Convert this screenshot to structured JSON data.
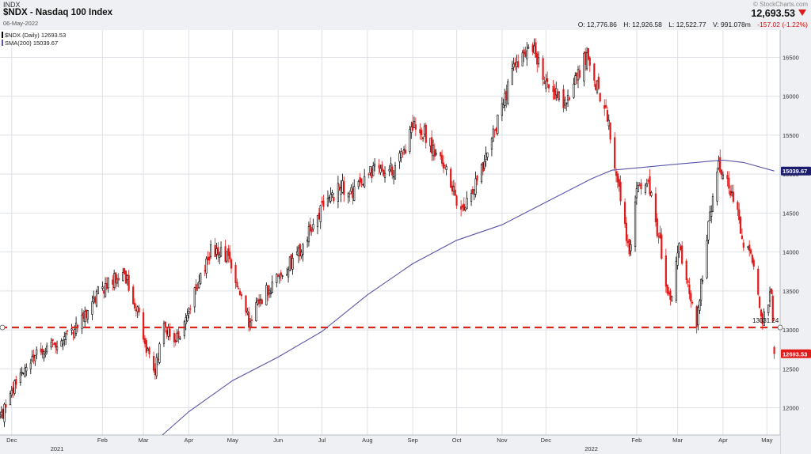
{
  "header": {
    "symbol": "INDX",
    "title": "$NDX - Nasdaq 100 Index",
    "date": "06-May-2022",
    "watermark": "© StockCharts.com",
    "last_price": "12,693.53",
    "open": "O: 12,776.86",
    "high": "H: 12,926.58",
    "low": "L: 12,522.77",
    "volume": "V: 991.078m",
    "change": "-157.02 (-1.22%)"
  },
  "legend": {
    "price": "$NDX (Daily) 12693.53",
    "sma": "SMA(200) 15039.67"
  },
  "colors": {
    "up": "#000000",
    "down": "#e01b1b",
    "sma": "#5a54a8",
    "support": "#d9251c",
    "grid": "#dde1e6",
    "axis_bg": "#eef0f3"
  },
  "chart_data": {
    "type": "candlestick",
    "title": "$NDX - Nasdaq 100 Index",
    "ylim": [
      11650,
      16850
    ],
    "y_ticks": [
      "12000",
      "12500",
      "13000",
      "13500",
      "14000",
      "14500",
      "15000",
      "15500",
      "16000",
      "16500"
    ],
    "x_range": [
      "2020-11-23",
      "2022-05-10"
    ],
    "x_ticks": [
      {
        "date": "2020-12-01",
        "label": "Dec"
      },
      {
        "date": "2021-01-01",
        "label": "2021",
        "year": true
      },
      {
        "date": "2021-02-01",
        "label": "Feb"
      },
      {
        "date": "2021-03-01",
        "label": "Mar"
      },
      {
        "date": "2021-04-01",
        "label": "Apr"
      },
      {
        "date": "2021-05-01",
        "label": "May"
      },
      {
        "date": "2021-06-01",
        "label": "Jun"
      },
      {
        "date": "2021-07-01",
        "label": "Jul"
      },
      {
        "date": "2021-08-01",
        "label": "Aug"
      },
      {
        "date": "2021-09-01",
        "label": "Sep"
      },
      {
        "date": "2021-10-01",
        "label": "Oct"
      },
      {
        "date": "2021-11-01",
        "label": "Nov"
      },
      {
        "date": "2021-12-01",
        "label": "Dec"
      },
      {
        "date": "2022-01-01",
        "label": "2022",
        "year": true
      },
      {
        "date": "2022-02-01",
        "label": "Feb"
      },
      {
        "date": "2022-03-01",
        "label": "Mar"
      },
      {
        "date": "2022-04-01",
        "label": "Apr"
      },
      {
        "date": "2022-05-01",
        "label": "May"
      }
    ],
    "price_series": {
      "name": "$NDX (Daily)",
      "last": 12693.53,
      "path": [
        [
          "2020-11-23",
          11850
        ],
        [
          "2020-12-05",
          12350
        ],
        [
          "2020-12-20",
          12720
        ],
        [
          "2021-01-05",
          12870
        ],
        [
          "2021-01-15",
          13050
        ],
        [
          "2021-01-25",
          13380
        ],
        [
          "2021-02-05",
          13600
        ],
        [
          "2021-02-15",
          13780
        ],
        [
          "2021-02-25",
          13250
        ],
        [
          "2021-03-08",
          12400
        ],
        [
          "2021-03-15",
          13000
        ],
        [
          "2021-03-25",
          12900
        ],
        [
          "2021-04-05",
          13500
        ],
        [
          "2021-04-16",
          14000
        ],
        [
          "2021-04-28",
          13950
        ],
        [
          "2021-05-12",
          13100
        ],
        [
          "2021-05-20",
          13400
        ],
        [
          "2021-06-01",
          13650
        ],
        [
          "2021-06-15",
          14000
        ],
        [
          "2021-06-30",
          14550
        ],
        [
          "2021-07-14",
          14850
        ],
        [
          "2021-07-20",
          14700
        ],
        [
          "2021-08-01",
          15050
        ],
        [
          "2021-08-20",
          15050
        ],
        [
          "2021-09-01",
          15600
        ],
        [
          "2021-09-10",
          15500
        ],
        [
          "2021-09-22",
          15100
        ],
        [
          "2021-10-04",
          14500
        ],
        [
          "2021-10-15",
          14900
        ],
        [
          "2021-10-28",
          15600
        ],
        [
          "2021-11-08",
          16300
        ],
        [
          "2021-11-22",
          16600
        ],
        [
          "2021-11-30",
          16200
        ],
        [
          "2021-12-15",
          15900
        ],
        [
          "2021-12-28",
          16500
        ],
        [
          "2022-01-05",
          16100
        ],
        [
          "2022-01-12",
          15700
        ],
        [
          "2022-01-20",
          14800
        ],
        [
          "2022-01-27",
          13900
        ],
        [
          "2022-02-02",
          14950
        ],
        [
          "2022-02-10",
          14800
        ],
        [
          "2022-02-17",
          14100
        ],
        [
          "2022-02-24",
          13300
        ],
        [
          "2022-03-02",
          14100
        ],
        [
          "2022-03-14",
          13100
        ],
        [
          "2022-03-23",
          14500
        ],
        [
          "2022-03-29",
          15100
        ],
        [
          "2022-04-05",
          14900
        ],
        [
          "2022-04-15",
          14150
        ],
        [
          "2022-04-22",
          13900
        ],
        [
          "2022-04-28",
          13100
        ],
        [
          "2022-05-04",
          13500
        ],
        [
          "2022-05-06",
          12693.53
        ]
      ]
    },
    "sma_series": {
      "name": "SMA(200)",
      "last": 15039.67,
      "points": [
        [
          "2021-03-14",
          11650
        ],
        [
          "2021-04-01",
          11950
        ],
        [
          "2021-05-01",
          12350
        ],
        [
          "2021-06-01",
          12650
        ],
        [
          "2021-07-01",
          12980
        ],
        [
          "2021-08-01",
          13450
        ],
        [
          "2021-09-01",
          13850
        ],
        [
          "2021-10-01",
          14150
        ],
        [
          "2021-11-01",
          14350
        ],
        [
          "2021-12-01",
          14640
        ],
        [
          "2022-01-01",
          14940
        ],
        [
          "2022-01-15",
          15050
        ],
        [
          "2022-02-01",
          15080
        ],
        [
          "2022-03-01",
          15130
        ],
        [
          "2022-04-01",
          15180
        ],
        [
          "2022-04-15",
          15150
        ],
        [
          "2022-05-06",
          15039.67
        ]
      ]
    },
    "support_line": {
      "value": 13031.24,
      "label": "13031.24",
      "style": "dashed"
    },
    "y_axis_markers": [
      {
        "value": 15039.67,
        "label": "15039.67",
        "color": "#1c1c6e"
      },
      {
        "value": 12693.53,
        "label": "12693.53",
        "color": "#e01b1b"
      }
    ]
  }
}
